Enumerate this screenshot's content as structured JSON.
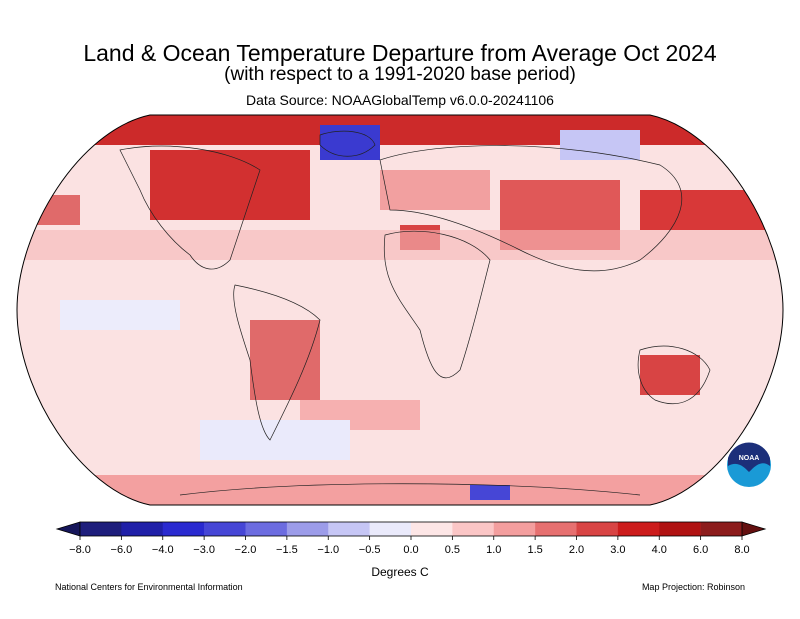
{
  "title": "Land & Ocean Temperature Departure from Average Oct 2024",
  "subtitle": "(with respect to a 1991-2020 base period)",
  "source": "Data Source: NOAAGlobalTemp v6.0.0-20241106",
  "logo_text": "NOAA",
  "legend": {
    "ticks": [
      "−8.0",
      "−6.0",
      "−4.0",
      "−3.0",
      "−2.0",
      "−1.5",
      "−1.0",
      "−0.5",
      "0.0",
      "0.5",
      "1.0",
      "1.5",
      "2.0",
      "3.0",
      "4.0",
      "6.0",
      "8.0"
    ],
    "colors": [
      "#1e1e7c",
      "#2020a8",
      "#2a2ad0",
      "#4646d6",
      "#6c6ce0",
      "#9c9ce9",
      "#c6c6f5",
      "#eaeafb",
      "#fde6e6",
      "#fbc6c6",
      "#f39e9e",
      "#e67070",
      "#d84444",
      "#cc1c1c",
      "#b01212",
      "#8c1c1c"
    ],
    "low_color": "#16165a",
    "high_color": "#641010",
    "units": "Degrees C"
  },
  "footer": {
    "left": "National Centers for Environmental Information",
    "right": "Map Projection: Robinson"
  }
}
